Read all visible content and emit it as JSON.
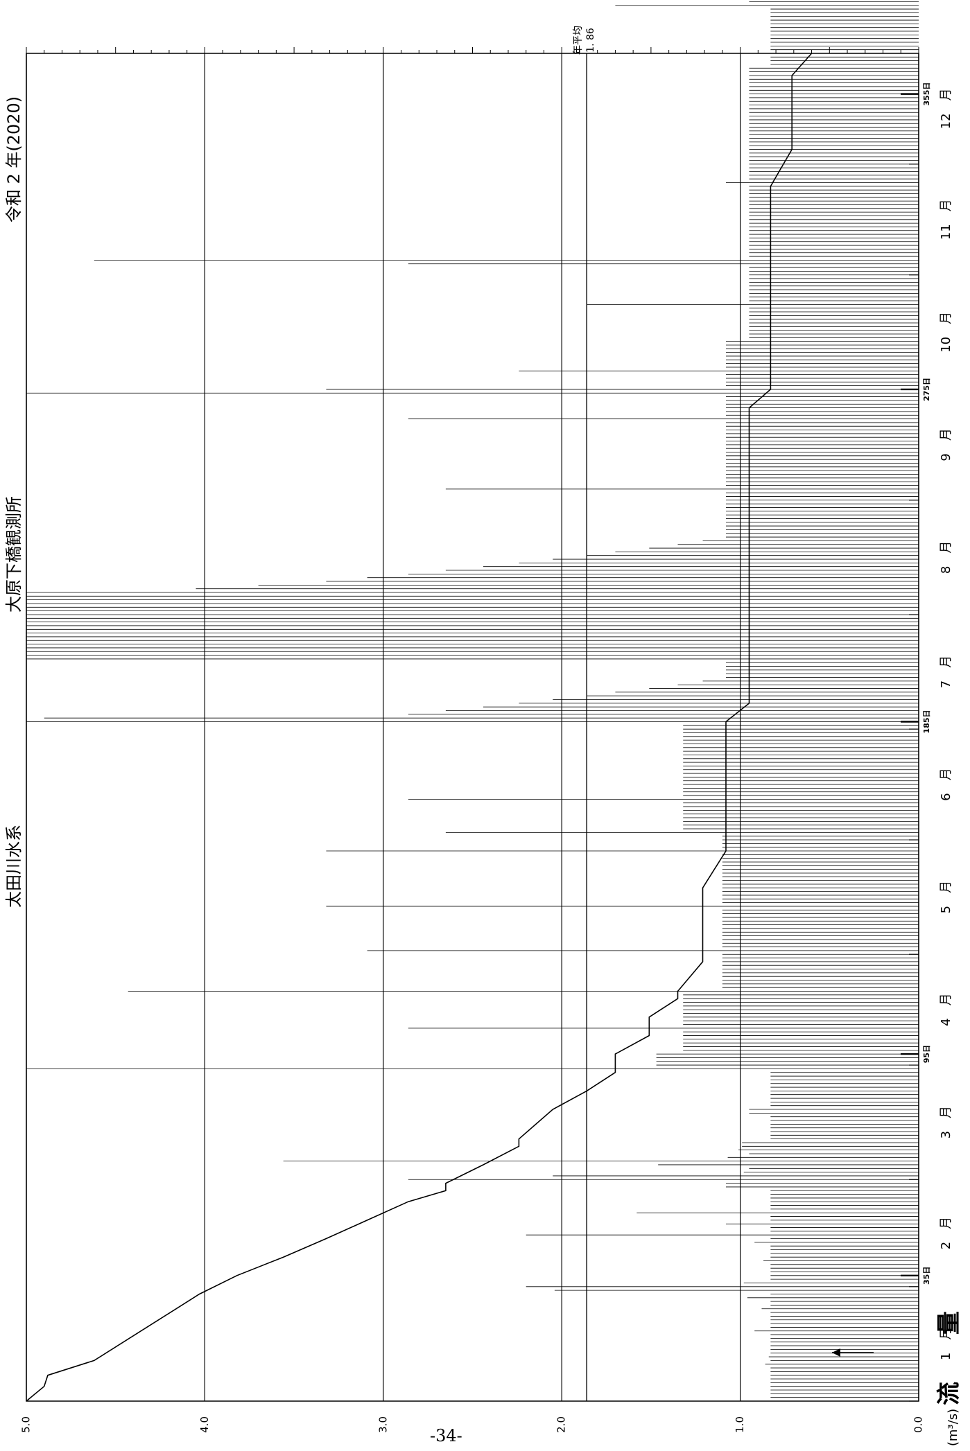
{
  "chart_data": {
    "type": "line",
    "orientation": "rotated-90",
    "title_left": "太田川水系",
    "title_center": "大原下橋観測所",
    "title_right": "令和 2 年(2020)",
    "ylabel": "流　　量",
    "y_unit": "(m³/s)",
    "ylim": [
      0.0,
      5.0
    ],
    "y_ticks": [
      "5.0",
      "4.0",
      "3.0",
      "2.0",
      "1.0",
      "0.0"
    ],
    "annual_mean": 1.86,
    "annual_mean_label": "年平均",
    "annual_mean_value_label": "1. 86",
    "x_range_days": [
      1,
      366
    ],
    "month_labels": [
      {
        "month": "1",
        "label": "1　月",
        "start_day": 1
      },
      {
        "month": "2",
        "label": "2　月",
        "start_day": 32
      },
      {
        "month": "3",
        "label": "3　月",
        "start_day": 61
      },
      {
        "month": "4",
        "label": "4　月",
        "start_day": 92
      },
      {
        "month": "5",
        "label": "5　月",
        "start_day": 122
      },
      {
        "month": "6",
        "label": "6　月",
        "start_day": 153
      },
      {
        "month": "7",
        "label": "7　月",
        "start_day": 183
      },
      {
        "month": "8",
        "label": "8　月",
        "start_day": 214
      },
      {
        "month": "9",
        "label": "9　月",
        "start_day": 245
      },
      {
        "month": "10",
        "label": "10　月",
        "start_day": 275
      },
      {
        "month": "11",
        "label": "11　月",
        "start_day": 306
      },
      {
        "month": "12",
        "label": "12　月",
        "start_day": 336
      }
    ],
    "day_markers": [
      {
        "day": 35,
        "label": "35日"
      },
      {
        "day": 95,
        "label": "95日"
      },
      {
        "day": 185,
        "label": "185日"
      },
      {
        "day": 275,
        "label": "275日"
      },
      {
        "day": 355,
        "label": "355日"
      }
    ],
    "series": [
      {
        "key": "flow_duration",
        "x": [
          1,
          5,
          8,
          12,
          30,
          35,
          40,
          45,
          50,
          55,
          58,
          60,
          65,
          70,
          72,
          80,
          85,
          90,
          95,
          100,
          105,
          110,
          112,
          120,
          125,
          130,
          140,
          150,
          155,
          160,
          170,
          180,
          185,
          190,
          200,
          210,
          220,
          230,
          240,
          250,
          260,
          270,
          275,
          280,
          290,
          300,
          310,
          320,
          330,
          340,
          350,
          355,
          360,
          366
        ],
        "values": [
          5.0,
          4.9,
          4.88,
          4.62,
          4.03,
          3.82,
          3.56,
          3.32,
          3.09,
          2.86,
          2.65,
          2.65,
          2.44,
          2.24,
          2.24,
          2.05,
          1.86,
          1.7,
          1.7,
          1.51,
          1.51,
          1.35,
          1.35,
          1.21,
          1.21,
          1.21,
          1.21,
          1.08,
          1.08,
          1.08,
          1.08,
          1.08,
          1.08,
          0.95,
          0.95,
          0.95,
          0.95,
          0.95,
          0.95,
          0.95,
          0.95,
          0.95,
          0.83,
          0.83,
          0.83,
          0.83,
          0.83,
          0.83,
          0.83,
          0.71,
          0.71,
          0.71,
          0.71,
          0.6
        ]
      },
      {
        "key": "daily_flow",
        "values": [
          0.83,
          0.83,
          0.83,
          0.83,
          0.83,
          0.83,
          0.83,
          0.83,
          0.83,
          0.83,
          0.86,
          0.83,
          0.84,
          0.83,
          0.83,
          0.83,
          0.83,
          0.83,
          0.83,
          0.92,
          0.83,
          0.83,
          0.83,
          0.83,
          0.83,
          0.88,
          0.83,
          0.83,
          0.96,
          0.83,
          2.04,
          2.2,
          0.98,
          0.83,
          0.83,
          0.83,
          0.83,
          0.83,
          0.87,
          0.83,
          0.83,
          0.83,
          0.83,
          0.92,
          0.83,
          2.2,
          0.83,
          0.83,
          1.08,
          0.83,
          0.83,
          1.58,
          0.83,
          0.83,
          0.83,
          0.83,
          0.83,
          0.83,
          1.08,
          1.08,
          2.86,
          2.05,
          0.98,
          0.95,
          1.46,
          3.56,
          1.07,
          0.95,
          1.01,
          0.99,
          0.99,
          0.83,
          0.83,
          0.83,
          0.83,
          0.83,
          0.83,
          0.83,
          0.95,
          0.95,
          0.83,
          0.83,
          0.83,
          0.83,
          0.83,
          0.83,
          0.83,
          0.83,
          0.83,
          0.83,
          5.0,
          1.47,
          1.47,
          1.47,
          1.47,
          1.32,
          1.32,
          1.32,
          1.32,
          1.32,
          1.32,
          2.86,
          1.32,
          1.32,
          1.32,
          1.32,
          1.32,
          1.32,
          1.32,
          1.32,
          1.32,
          4.43,
          1.1,
          1.1,
          1.1,
          1.1,
          1.1,
          1.1,
          1.1,
          1.1,
          1.1,
          1.1,
          3.09,
          1.1,
          1.1,
          1.1,
          1.1,
          1.1,
          1.1,
          1.1,
          1.1,
          1.1,
          1.1,
          1.1,
          3.32,
          1.1,
          1.1,
          1.1,
          1.1,
          1.1,
          1.1,
          1.1,
          1.1,
          1.1,
          1.1,
          1.1,
          1.1,
          1.1,
          1.1,
          3.32,
          1.1,
          1.1,
          1.1,
          1.1,
          2.65,
          1.32,
          1.32,
          1.32,
          1.32,
          1.32,
          1.32,
          1.32,
          1.32,
          2.86,
          1.32,
          1.32,
          1.32,
          1.32,
          1.32,
          1.32,
          1.32,
          1.32,
          1.32,
          1.32,
          1.32,
          1.32,
          1.32,
          1.32,
          1.32,
          1.32,
          1.32,
          1.32,
          1.32,
          1.32,
          5.0,
          4.9,
          2.86,
          2.65,
          2.44,
          2.24,
          2.05,
          1.86,
          1.7,
          1.51,
          1.35,
          1.21,
          1.08,
          1.08,
          1.08,
          1.08,
          1.08,
          5.0,
          5.0,
          5.0,
          5.0,
          5.0,
          5.0,
          5.0,
          5.0,
          5.0,
          5.0,
          5.0,
          5.0,
          5.0,
          5.0,
          5.0,
          5.0,
          5.0,
          5.0,
          5.0,
          4.05,
          3.7,
          3.32,
          3.09,
          2.86,
          2.65,
          2.44,
          2.24,
          2.05,
          1.86,
          1.7,
          1.51,
          1.35,
          1.21,
          1.08,
          1.08,
          1.08,
          1.08,
          1.08,
          1.08,
          1.08,
          1.08,
          1.08,
          1.08,
          1.08,
          1.08,
          1.08,
          2.65,
          1.08,
          1.08,
          1.08,
          1.08,
          1.08,
          1.08,
          1.08,
          1.08,
          1.08,
          1.08,
          1.08,
          1.08,
          1.08,
          1.08,
          1.08,
          1.08,
          1.08,
          1.08,
          2.86,
          1.08,
          1.08,
          1.08,
          1.08,
          1.08,
          1.08,
          5.0,
          3.32,
          1.08,
          1.08,
          1.08,
          1.08,
          2.24,
          1.08,
          1.08,
          1.08,
          1.08,
          1.08,
          1.08,
          1.08,
          1.08,
          0.95,
          0.95,
          0.95,
          0.95,
          0.95,
          0.95,
          0.95,
          0.95,
          0.95,
          1.86,
          0.95,
          0.95,
          0.95,
          0.95,
          0.95,
          0.95,
          0.95,
          0.95,
          0.95,
          0.95,
          2.86,
          4.62,
          0.95,
          0.95,
          0.95,
          0.95,
          0.95,
          0.95,
          0.95,
          0.95,
          0.95,
          0.95,
          0.95,
          0.95,
          0.95,
          0.95,
          0.95,
          0.95,
          0.95,
          0.95,
          0.95,
          0.95,
          1.08,
          0.95,
          0.95,
          0.95,
          0.95,
          0.95,
          0.95,
          0.95,
          0.95,
          0.95,
          0.95,
          0.95,
          0.95,
          0.95,
          0.95,
          0.95,
          0.95,
          0.95,
          0.95,
          0.95,
          0.95,
          0.95,
          0.95,
          0.95,
          0.95,
          0.95,
          0.95,
          0.95,
          0.95,
          0.95,
          0.95,
          0.95,
          0.83,
          0.83,
          0.83,
          0.83,
          0.83,
          0.83,
          0.83,
          0.83,
          0.83,
          0.83,
          0.83,
          0.83,
          0.83,
          0.83,
          0.83,
          0.83,
          1.7,
          0.95,
          0.95,
          0.95
        ]
      }
    ],
    "grid": true
  },
  "page_number": "-34-"
}
